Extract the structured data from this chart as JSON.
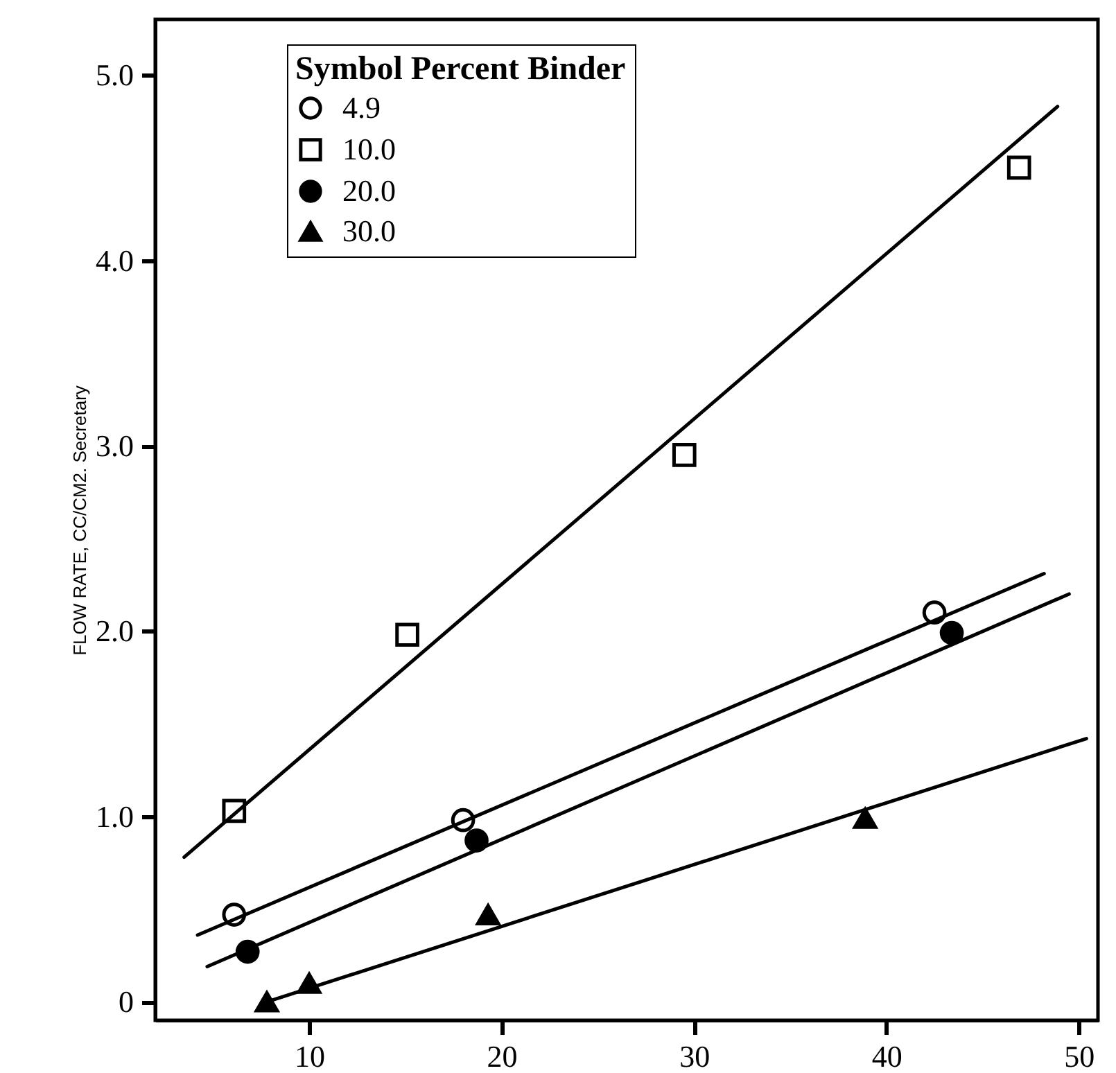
{
  "chart_data": {
    "type": "scatter",
    "ylabel": "FLOW RATE, CC/CM2. Secretary",
    "legend_title": "Symbol Percent Binder",
    "legend": "top left",
    "grid": false,
    "xlim": [
      2,
      51
    ],
    "xticks": [
      10,
      20,
      30,
      40,
      50
    ],
    "ylim": [
      -0.1,
      5.3
    ],
    "yticks": [
      0,
      {
        "value": 1,
        "label": "1.0"
      },
      {
        "value": 2,
        "label": "2.0"
      },
      {
        "value": 3,
        "label": "3.0"
      },
      {
        "value": 4,
        "label": "4.0"
      },
      {
        "value": 5,
        "label": "5.0"
      }
    ],
    "series": [
      {
        "name": "4.9",
        "type": "scatter",
        "marker": "circle",
        "color": "#ffffff",
        "x": [
          6.1,
          18.0,
          42.5
        ],
        "values": [
          0.47,
          0.98,
          2.1
        ]
      },
      {
        "name": "10.0",
        "type": "scatter",
        "marker": "square",
        "color": "#ffffff",
        "x": [
          6.1,
          15.1,
          29.5,
          46.9
        ],
        "values": [
          1.03,
          1.98,
          2.95,
          4.5
        ]
      },
      {
        "name": "20.0",
        "type": "scatter",
        "marker": "circle",
        "color": "#000000",
        "x": [
          6.8,
          18.7,
          43.4
        ],
        "values": [
          0.27,
          0.87,
          1.99
        ]
      },
      {
        "name": "30.0",
        "type": "scatter",
        "marker": "triangle",
        "color": "#000000",
        "x": [
          7.8,
          10.0,
          19.3,
          38.9
        ],
        "values": [
          0.0,
          0.1,
          0.47,
          0.99
        ]
      },
      {
        "type": "line",
        "color": "#000000",
        "x": [
          4.2,
          48.2
        ],
        "values": [
          0.36,
          2.31
        ]
      },
      {
        "type": "line",
        "color": "#000000",
        "x": [
          3.5,
          48.9
        ],
        "values": [
          0.78,
          4.83
        ]
      },
      {
        "type": "line",
        "color": "#000000",
        "x": [
          4.7,
          49.5
        ],
        "values": [
          0.19,
          2.2
        ]
      },
      {
        "type": "line",
        "color": "#000000",
        "x": [
          7.8,
          50.4
        ],
        "values": [
          0.0,
          1.42
        ]
      }
    ]
  }
}
